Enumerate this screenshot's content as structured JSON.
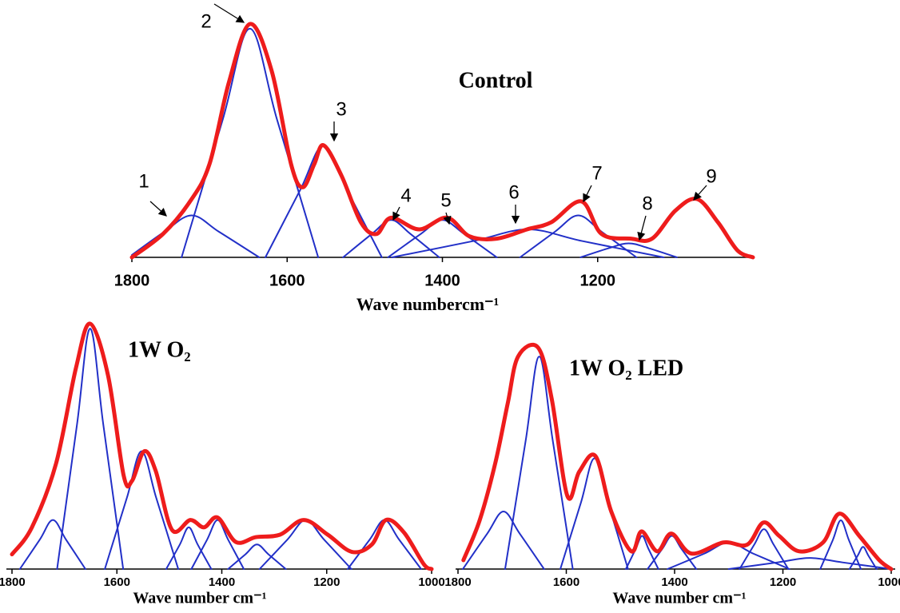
{
  "chart_data": [
    {
      "type": "line",
      "title": "Control",
      "x_label": "Wave numbercm⁻¹",
      "xlim": [
        1800,
        1000
      ],
      "xticks": [
        1800,
        1600,
        1400,
        1200
      ],
      "ylim": [
        0,
        100
      ],
      "annotations": [
        "1",
        "2",
        "3",
        "4",
        "5",
        "6",
        "7",
        "8",
        "9"
      ],
      "series": [
        {
          "color": "#2230c8",
          "x": [
            1800,
            1758,
            1723,
            1688,
            1636
          ],
          "values": [
            1,
            11,
            18,
            11,
            0
          ]
        },
        {
          "color": "#2230c8",
          "x": [
            1736,
            1683,
            1648,
            1613,
            1560
          ],
          "values": [
            0,
            59,
            98,
            59,
            0
          ]
        },
        {
          "color": "#2230c8",
          "x": [
            1628,
            1583,
            1553,
            1523,
            1478
          ],
          "values": [
            0,
            29,
            48,
            29,
            0
          ]
        },
        {
          "color": "#2230c8",
          "x": [
            1528,
            1491,
            1466,
            1441,
            1404
          ],
          "values": [
            0,
            10,
            16,
            10,
            0
          ]
        },
        {
          "color": "#2230c8",
          "x": [
            1470,
            1428,
            1400,
            1372,
            1330
          ],
          "values": [
            0,
            10,
            16,
            10,
            0
          ]
        },
        {
          "color": "#2230c8",
          "x": [
            1465,
            1360,
            1290,
            1220,
            1115
          ],
          "values": [
            0,
            7,
            12,
            7,
            0
          ]
        },
        {
          "color": "#2230c8",
          "x": [
            1300,
            1255,
            1225,
            1195,
            1150
          ],
          "values": [
            0,
            11,
            18,
            11,
            0
          ]
        },
        {
          "color": "#2230c8",
          "x": [
            1222,
            1185,
            1160,
            1135,
            1098
          ],
          "values": [
            0,
            4,
            6,
            4,
            0
          ]
        },
        {
          "color": "#ee1c1c",
          "x": [
            1800,
            1760,
            1725,
            1700,
            1675,
            1648,
            1620,
            1595,
            1580,
            1565,
            1553,
            1530,
            1505,
            1485,
            1466,
            1430,
            1394,
            1365,
            1330,
            1291,
            1260,
            1221,
            1195,
            1157,
            1130,
            1100,
            1072,
            1045,
            1020,
            1000
          ],
          "values": [
            0,
            10,
            24,
            40,
            75,
            100,
            80,
            40,
            30,
            40,
            48,
            35,
            15,
            10,
            17,
            12,
            17,
            9,
            8,
            12,
            15,
            24,
            10,
            8,
            8,
            20,
            25,
            15,
            3,
            0
          ]
        }
      ]
    },
    {
      "type": "line",
      "title": "1W O₂",
      "x_label": "Wave number cm⁻¹",
      "xlim": [
        1800,
        1000
      ],
      "xticks": [
        1800,
        1600,
        1400,
        1200,
        1000
      ],
      "ylim": [
        0,
        100
      ],
      "series": [
        {
          "color": "#2230c8",
          "x": [
            1785,
            1747,
            1722,
            1697,
            1660
          ],
          "values": [
            0,
            12,
            20,
            12,
            0
          ]
        },
        {
          "color": "#2230c8",
          "x": [
            1714,
            1676,
            1651,
            1626,
            1588
          ],
          "values": [
            0,
            59,
            98,
            59,
            0
          ]
        },
        {
          "color": "#2230c8",
          "x": [
            1623,
            1581,
            1553,
            1525,
            1483
          ],
          "values": [
            0,
            29,
            48,
            29,
            0
          ]
        },
        {
          "color": "#2230c8",
          "x": [
            1506,
            1480,
            1463,
            1446,
            1420
          ],
          "values": [
            0,
            10,
            17,
            10,
            0
          ]
        },
        {
          "color": "#2230c8",
          "x": [
            1458,
            1428,
            1408,
            1388,
            1358
          ],
          "values": [
            0,
            12,
            20,
            12,
            0
          ]
        },
        {
          "color": "#2230c8",
          "x": [
            1388,
            1355,
            1333,
            1311,
            1278
          ],
          "values": [
            0,
            6,
            10,
            6,
            0
          ]
        },
        {
          "color": "#2230c8",
          "x": [
            1328,
            1275,
            1240,
            1205,
            1153
          ],
          "values": [
            0,
            12,
            20,
            12,
            0
          ]
        },
        {
          "color": "#2230c8",
          "x": [
            1160,
            1118,
            1090,
            1062,
            1020
          ],
          "values": [
            0,
            12,
            20,
            12,
            0
          ]
        },
        {
          "color": "#ee1c1c",
          "x": [
            1800,
            1762,
            1716,
            1678,
            1651,
            1617,
            1587,
            1571,
            1548,
            1526,
            1495,
            1460,
            1434,
            1408,
            1373,
            1335,
            1289,
            1244,
            1198,
            1152,
            1114,
            1087,
            1053,
            1015,
            1000
          ],
          "values": [
            6,
            17,
            43,
            82,
            100,
            79,
            38,
            36,
            48,
            40,
            16,
            20,
            17,
            21,
            11,
            13,
            14,
            20,
            14,
            7,
            10,
            20,
            15,
            2,
            0
          ]
        }
      ]
    },
    {
      "type": "line",
      "title": "1W O₂ LED",
      "x_label": "Wave number cm⁻¹",
      "xlim": [
        1800,
        1000
      ],
      "xticks": [
        1800,
        1600,
        1400,
        1200,
        1000
      ],
      "ylim": [
        0,
        100
      ],
      "series": [
        {
          "color": "#2230c8",
          "x": [
            1791,
            1746,
            1716,
            1686,
            1641
          ],
          "values": [
            0,
            16,
            26,
            16,
            0
          ]
        },
        {
          "color": "#2230c8",
          "x": [
            1713,
            1675,
            1650,
            1625,
            1588
          ],
          "values": [
            0,
            58,
            96,
            58,
            0
          ]
        },
        {
          "color": "#2230c8",
          "x": [
            1611,
            1573,
            1548,
            1523,
            1486
          ],
          "values": [
            0,
            30,
            50,
            30,
            0
          ]
        },
        {
          "color": "#2230c8",
          "x": [
            1490,
            1472,
            1460,
            1448,
            1430
          ],
          "values": [
            0,
            9,
            15,
            9,
            0
          ]
        },
        {
          "color": "#2230c8",
          "x": [
            1450,
            1423,
            1405,
            1387,
            1360
          ],
          "values": [
            0,
            9,
            15,
            9,
            0
          ]
        },
        {
          "color": "#2230c8",
          "x": [
            1413,
            1345,
            1300,
            1255,
            1188
          ],
          "values": [
            0,
            7,
            12,
            7,
            0
          ]
        },
        {
          "color": "#2230c8",
          "x": [
            1280,
            1253,
            1235,
            1217,
            1190
          ],
          "values": [
            0,
            11,
            18,
            11,
            0
          ]
        },
        {
          "color": "#2230c8",
          "x": [
            1300,
            1210,
            1150,
            1090,
            1000
          ],
          "values": [
            0,
            3,
            5,
            3,
            0
          ]
        },
        {
          "color": "#2230c8",
          "x": [
            1131,
            1108,
            1093,
            1078,
            1056
          ],
          "values": [
            0,
            13,
            22,
            13,
            0
          ]
        },
        {
          "color": "#2230c8",
          "x": [
            1077,
            1062,
            1052,
            1042,
            1027
          ],
          "values": [
            0,
            6,
            10,
            6,
            0
          ]
        },
        {
          "color": "#ee1c1c",
          "x": [
            1790,
            1760,
            1731,
            1708,
            1689,
            1652,
            1627,
            1598,
            1576,
            1546,
            1517,
            1480,
            1461,
            1432,
            1406,
            1369,
            1310,
            1266,
            1236,
            1207,
            1170,
            1126,
            1096,
            1059,
            1022,
            1000
          ],
          "values": [
            4,
            22,
            48,
            75,
            96,
            100,
            77,
            33,
            44,
            51,
            26,
            8,
            17,
            8,
            16,
            7,
            12,
            11,
            21,
            15,
            8,
            12,
            25,
            15,
            4,
            0
          ]
        }
      ]
    }
  ]
}
